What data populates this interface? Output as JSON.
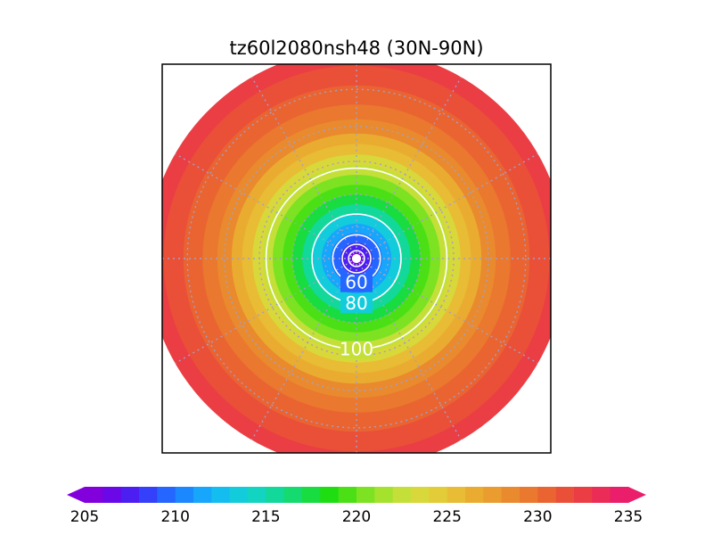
{
  "chart_data": {
    "type": "heatmap",
    "projection": "north-polar-stereographic",
    "title": "tz60l2080nsh48 (30N-90N)",
    "lat_range": [
      30,
      90
    ],
    "field_description": "shaded field, lowest near the pole, increasing toward 30N",
    "shaded_rings": [
      {
        "lat_outer": 90,
        "lat_inner": 88,
        "value": 205.5
      },
      {
        "lat_outer": 88,
        "lat_inner": 85,
        "value": 207
      },
      {
        "lat_outer": 85,
        "lat_inner": 82,
        "value": 209
      },
      {
        "lat_outer": 82,
        "lat_inner": 79,
        "value": 211
      },
      {
        "lat_outer": 79,
        "lat_inner": 76,
        "value": 213
      },
      {
        "lat_outer": 76,
        "lat_inner": 73,
        "value": 215
      },
      {
        "lat_outer": 73,
        "lat_inner": 70,
        "value": 217
      },
      {
        "lat_outer": 70,
        "lat_inner": 67,
        "value": 219
      },
      {
        "lat_outer": 67,
        "lat_inner": 64,
        "value": 220.5
      },
      {
        "lat_outer": 64,
        "lat_inner": 61,
        "value": 222
      },
      {
        "lat_outer": 61,
        "lat_inner": 58,
        "value": 223.5
      },
      {
        "lat_outer": 58,
        "lat_inner": 55,
        "value": 225
      },
      {
        "lat_outer": 55,
        "lat_inner": 52,
        "value": 226.5
      },
      {
        "lat_outer": 52,
        "lat_inner": 48,
        "value": 228
      },
      {
        "lat_outer": 48,
        "lat_inner": 44,
        "value": 229.5
      },
      {
        "lat_outer": 44,
        "lat_inner": 39,
        "value": 230.5
      },
      {
        "lat_outer": 39,
        "lat_inner": 34,
        "value": 231.5
      },
      {
        "lat_outer": 34,
        "lat_inner": 30,
        "value": 232.5
      }
    ],
    "contours": [
      {
        "level": 100,
        "label": "100",
        "lat": 62
      },
      {
        "level": 80,
        "label": "80",
        "lat": 76
      },
      {
        "level": 60,
        "label": "60",
        "lat": 82.5
      },
      {
        "level": 40,
        "label": "",
        "lat": 85.5
      },
      {
        "level": 20,
        "label": "",
        "lat": 87.5
      },
      {
        "level": 0,
        "label": "",
        "lat": 88.8
      },
      {
        "level": -20,
        "label": "",
        "lat": 89.5
      }
    ],
    "graticule": {
      "lats": [
        40,
        50,
        60,
        70,
        80
      ],
      "lons": [
        0,
        30,
        60,
        90,
        120,
        150,
        180,
        210,
        240,
        270,
        300,
        330
      ]
    },
    "colorbar": {
      "min": 205,
      "max": 235,
      "step": 1,
      "extend": "both",
      "tick_labels": [
        "205",
        "210",
        "215",
        "220",
        "225",
        "230",
        "235"
      ],
      "colors": [
        "#8200dc",
        "#6a08e8",
        "#4d1ef2",
        "#3440fa",
        "#2466ff",
        "#1b88ff",
        "#16a6fb",
        "#13bdf0",
        "#12ccdc",
        "#12d4c0",
        "#12d89a",
        "#14da70",
        "#18dc40",
        "#1ede12",
        "#4be016",
        "#7ce222",
        "#a4e22e",
        "#c4e038",
        "#d8d83a",
        "#e2cc38",
        "#e8bc34",
        "#eaac30",
        "#ea9c2e",
        "#ea8a2e",
        "#ea782e",
        "#ea6432",
        "#ea5038",
        "#ea3e44",
        "#ea2c56",
        "#ea1e6a"
      ]
    }
  }
}
